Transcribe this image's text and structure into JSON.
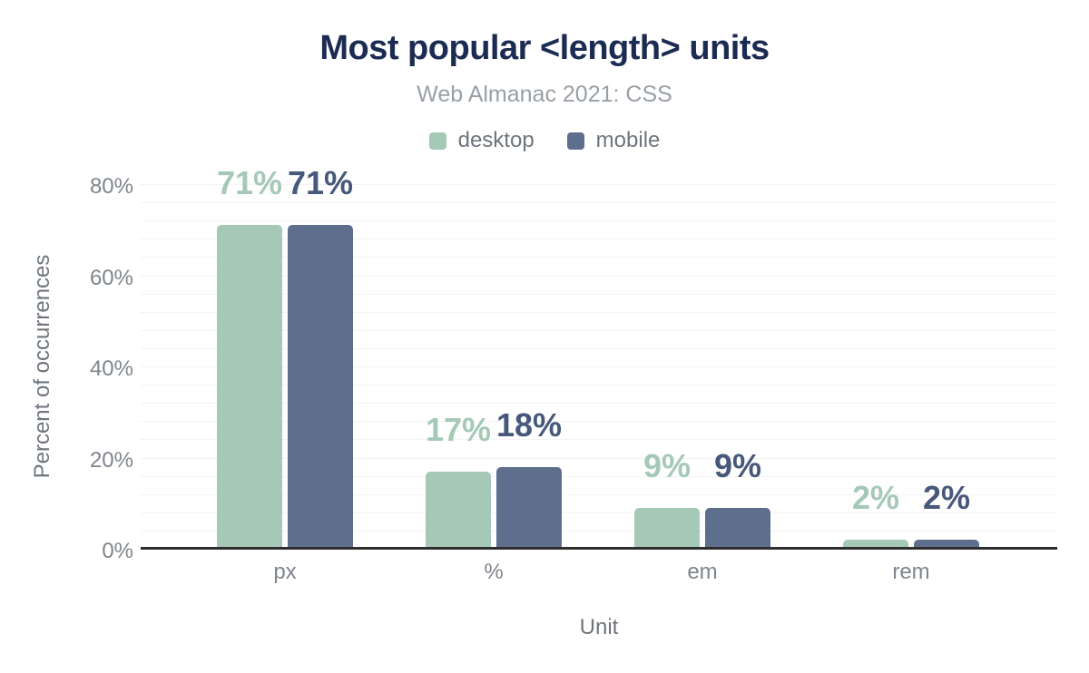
{
  "chart": {
    "title": "Most popular <length> units",
    "subtitle": "Web Almanac 2021: CSS",
    "xlabel": "Unit",
    "ylabel": "Percent of occurrences"
  },
  "legend": {
    "items": [
      {
        "label": "desktop",
        "color": "#a5c9b6"
      },
      {
        "label": "mobile",
        "color": "#5e6f8e"
      }
    ]
  },
  "chart_data": {
    "type": "bar",
    "title": "Most popular <length> units",
    "subtitle": "Web Almanac 2021: CSS",
    "categories": [
      "px",
      "%",
      "em",
      "rem"
    ],
    "series": [
      {
        "name": "desktop",
        "color": "#a5c9b6",
        "label_color": "#a5c9b6",
        "values": [
          71,
          17,
          9,
          2
        ],
        "labels": [
          "71%",
          "17%",
          "9%",
          "2%"
        ]
      },
      {
        "name": "mobile",
        "color": "#5e6f8e",
        "label_color": "#47587a",
        "values": [
          71,
          18,
          9,
          2
        ],
        "labels": [
          "71%",
          "18%",
          "9%",
          "2%"
        ]
      }
    ],
    "xlabel": "Unit",
    "ylabel": "Percent of occurrences",
    "ylim": [
      0,
      80
    ],
    "yticks": [
      0,
      20,
      40,
      60,
      80
    ],
    "ytick_labels": [
      "0%",
      "20%",
      "40%",
      "60%",
      "80%"
    ],
    "minor_grid_step": 4,
    "grid": true,
    "legend_position": "top"
  },
  "colors": {
    "title": "#1c2b52",
    "subtitle": "#999fa6",
    "axis_text": "#7f858c",
    "axis_title_text": "#6e757c",
    "gridline": "#f3f3f3",
    "axis_line": "#2e2e2e",
    "background": "#ffffff"
  }
}
